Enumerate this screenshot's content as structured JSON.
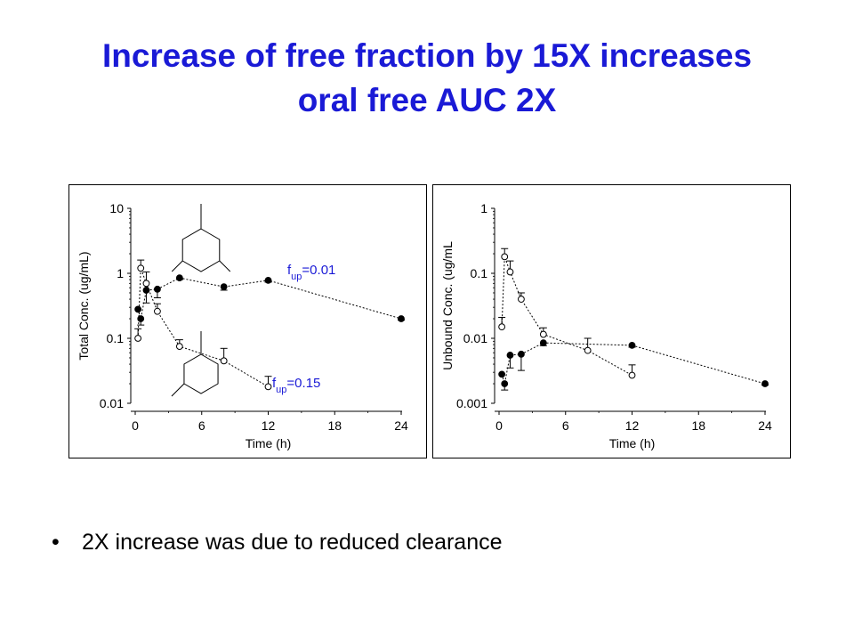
{
  "slide": {
    "title_line1": "Increase of free fraction by 15X increases",
    "title_line2": "oral free AUC 2X",
    "bullet": "2X increase was due to reduced clearance",
    "title_color": "#1a1ad6",
    "annotation_color": "#1a1ad6"
  },
  "chart_data": [
    {
      "type": "scatter",
      "ylabel": "Total Conc. (ug/mL)",
      "xlabel": "Time (h)",
      "yscale": "log",
      "ylim": [
        0.01,
        10
      ],
      "xlim": [
        0,
        24
      ],
      "xticks": [
        "0",
        "6",
        "12",
        "18",
        "24"
      ],
      "yticks": [
        "10",
        "1",
        "0.1",
        "0.01"
      ],
      "annotations": [
        {
          "base": "f",
          "sub": "up",
          "text": "=0.01",
          "series": "filled"
        },
        {
          "base": "f",
          "sub": "up",
          "text": "=0.15",
          "series": "open"
        }
      ],
      "series": [
        {
          "marker": "filled",
          "points": [
            {
              "x": 0.25,
              "y": 0.28,
              "err": 0
            },
            {
              "x": 0.5,
              "y": 0.2,
              "err": 0.04
            },
            {
              "x": 1,
              "y": 0.55,
              "err": 0.2
            },
            {
              "x": 2,
              "y": 0.57,
              "err": 0.15
            },
            {
              "x": 4,
              "y": 0.85,
              "err": 0.05
            },
            {
              "x": 8,
              "y": 0.62,
              "err": 0.07
            },
            {
              "x": 12,
              "y": 0.78,
              "err": 0.05
            },
            {
              "x": 24,
              "y": 0.2,
              "err": 0.01
            }
          ]
        },
        {
          "marker": "open",
          "points": [
            {
              "x": 0.25,
              "y": 0.1,
              "err": 0.04
            },
            {
              "x": 0.5,
              "y": 1.2,
              "err": 0.4
            },
            {
              "x": 1,
              "y": 0.7,
              "err": 0.35
            },
            {
              "x": 2,
              "y": 0.26,
              "err": 0.08
            },
            {
              "x": 4,
              "y": 0.075,
              "err": 0.02
            },
            {
              "x": 8,
              "y": 0.045,
              "err": 0.025
            },
            {
              "x": 12,
              "y": 0.018,
              "err": 0.008
            }
          ]
        }
      ]
    },
    {
      "type": "scatter",
      "ylabel": "Unbound Conc. (ug/mL",
      "xlabel": "Time (h)",
      "yscale": "log",
      "ylim": [
        0.001,
        1
      ],
      "xlim": [
        0,
        24
      ],
      "xticks": [
        "0",
        "6",
        "12",
        "18",
        "24"
      ],
      "yticks": [
        "1",
        "0.1",
        "0.01",
        "0.001"
      ],
      "series": [
        {
          "marker": "filled",
          "points": [
            {
              "x": 0.25,
              "y": 0.0028,
              "err": 0
            },
            {
              "x": 0.5,
              "y": 0.002,
              "err": 0.0004
            },
            {
              "x": 1,
              "y": 0.0055,
              "err": 0.002
            },
            {
              "x": 2,
              "y": 0.0057,
              "err": 0.0025
            },
            {
              "x": 4,
              "y": 0.0085,
              "err": 0.0008
            },
            {
              "x": 12,
              "y": 0.0078,
              "err": 0.0005
            },
            {
              "x": 24,
              "y": 0.002,
              "err": 0.0001
            }
          ]
        },
        {
          "marker": "open",
          "points": [
            {
              "x": 0.25,
              "y": 0.015,
              "err": 0.006
            },
            {
              "x": 0.5,
              "y": 0.18,
              "err": 0.06
            },
            {
              "x": 1,
              "y": 0.105,
              "err": 0.05
            },
            {
              "x": 2,
              "y": 0.04,
              "err": 0.01
            },
            {
              "x": 4,
              "y": 0.0115,
              "err": 0.003
            },
            {
              "x": 8,
              "y": 0.0065,
              "err": 0.0035
            },
            {
              "x": 12,
              "y": 0.0027,
              "err": 0.0012
            }
          ]
        }
      ]
    }
  ]
}
